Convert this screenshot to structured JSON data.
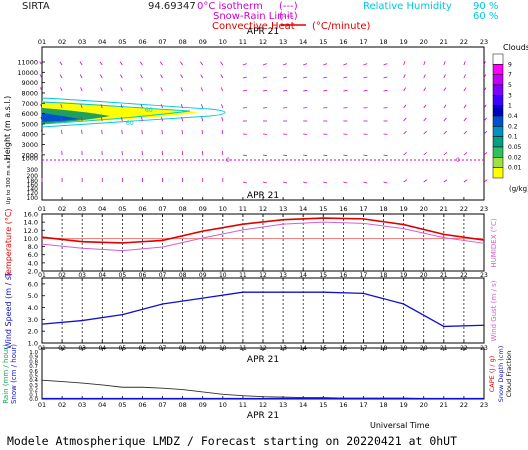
{
  "header": {
    "station": "SIRTA",
    "coord": "94.69347",
    "iso_label": "0°C isotherm",
    "iso_dash": "(---)",
    "snow_label": "Snow-Rain Limit",
    "snow_dash": "(---)",
    "conv_label": "Convective Heat",
    "conv_unit": "(°C/minute)",
    "rh_label": "Relative Humidity",
    "rh_90": "90 %",
    "rh_60": "60 %"
  },
  "hours": [
    "01",
    "02",
    "03",
    "04",
    "05",
    "06",
    "07",
    "08",
    "09",
    "10",
    "11",
    "12",
    "13",
    "14",
    "15",
    "16",
    "17",
    "18",
    "19",
    "20",
    "21",
    "22",
    "23"
  ],
  "date_label": "APR 21",
  "footer": {
    "universal_time": "Universal Time",
    "forecast": "Modele Atmospherique LMDZ / Forecast starting on 20220421 at 0hUT"
  },
  "colors": {
    "temperature": "#e00000",
    "humidex": "#d060d0",
    "wind": "#1010d0",
    "rain": "#303030",
    "iso": "#d000d0",
    "rh": "#00c8d8",
    "cloud_yellow": "#ffff00",
    "cloud_green": "#20a060"
  },
  "chart_data": [
    {
      "type": "area",
      "name": "clouds",
      "ylabel": "Height (m a.s.l.)",
      "ylabel2": "Up to 300 m a.s.l.",
      "yticks_upper": [
        1000,
        2000,
        3000,
        4000,
        5000,
        6000,
        7000,
        8000,
        9000,
        10000,
        11000
      ],
      "yticks_lower": [
        100,
        120,
        140,
        160,
        180,
        200,
        300
      ],
      "clouds_title": "Clouds",
      "clouds_unit": "(g/kg)",
      "clouds_scale": [
        "9",
        "7",
        "5",
        "3",
        "1",
        "0.4",
        "0.2",
        "0.1",
        "0.05",
        "0.02",
        "0.01"
      ],
      "clouds_colors": [
        "#ffffff",
        "#ff00ff",
        "#c000ff",
        "#8000ff",
        "#4000ff",
        "#0000c0",
        "#0050d0",
        "#0090c0",
        "#00a080",
        "#30c060",
        "#a0e040",
        "#ffff00"
      ],
      "rh_contour_labels": [
        "60",
        "60",
        "90"
      ],
      "isotherm_level": 1500,
      "isotherm_label": "0"
    },
    {
      "type": "line",
      "name": "temperature",
      "ylabel": "Temperature (°C)",
      "ylabel_right": "HUMIDEX (°C)",
      "yticks": [
        "2.0",
        "4.0",
        "6.0",
        "8.0",
        "10.0",
        "12.0",
        "14.0",
        "16.0"
      ],
      "ylim": [
        2,
        16
      ],
      "x": [
        1,
        3,
        5,
        7,
        9,
        11,
        13,
        15,
        17,
        19,
        21,
        23
      ],
      "series": [
        {
          "name": "Temperature",
          "values": [
            10.3,
            9.2,
            8.9,
            9.5,
            11.8,
            13.5,
            14.6,
            15.0,
            14.8,
            13.4,
            11.0,
            9.6
          ]
        },
        {
          "name": "Humidex",
          "values": [
            8.6,
            7.6,
            7.0,
            7.9,
            10.1,
            12.1,
            13.5,
            14.0,
            13.7,
            12.4,
            10.2,
            8.8
          ]
        }
      ],
      "reference_line": 10.0
    },
    {
      "type": "line",
      "name": "wind",
      "ylabel": "Wind Speed (m / s)",
      "ylabel_right": "Wind Gust (m / s)",
      "yticks": [
        "1.0",
        "2.0",
        "3.0",
        "4.0",
        "5.0",
        "6.0"
      ],
      "ylim": [
        1,
        6.5
      ],
      "x": [
        1,
        3,
        5,
        7,
        9,
        11,
        13,
        15,
        17,
        19,
        21,
        23
      ],
      "series": [
        {
          "name": "Wind Speed",
          "values": [
            2.6,
            2.9,
            3.4,
            4.3,
            4.8,
            5.3,
            5.3,
            5.3,
            5.2,
            4.3,
            2.4,
            2.5
          ]
        }
      ]
    },
    {
      "type": "line",
      "name": "precipitation",
      "ylabel_rain": "Rain (mm / hour)",
      "ylabel_snow": "Snow (cm / hour)",
      "ylabel_right1": "CAPE (J / g)",
      "ylabel_right2": "Snow Depth (cm)",
      "ylabel_right3": "Cloud Fraction",
      "yticks": [
        "0.0",
        "0.1",
        "0.2",
        "0.3",
        "0.4",
        "0.5",
        "0.6",
        "0.7",
        "0.8",
        "0.9",
        "1.0"
      ],
      "ylim": [
        0,
        1
      ],
      "x": [
        1,
        2,
        3,
        4,
        5,
        6,
        7,
        8,
        9,
        10,
        11,
        12,
        13,
        14,
        15,
        16,
        17,
        18,
        19,
        20,
        21,
        22,
        23
      ],
      "series": [
        {
          "name": "Cloud Fraction",
          "values": [
            0.4,
            0.37,
            0.34,
            0.3,
            0.25,
            0.25,
            0.23,
            0.2,
            0.15,
            0.1,
            0.07,
            0.05,
            0.04,
            0.03,
            0.03,
            0.02,
            0.02,
            0.02,
            0.02,
            0.01,
            0.01,
            0.01,
            0.01
          ]
        }
      ]
    }
  ]
}
